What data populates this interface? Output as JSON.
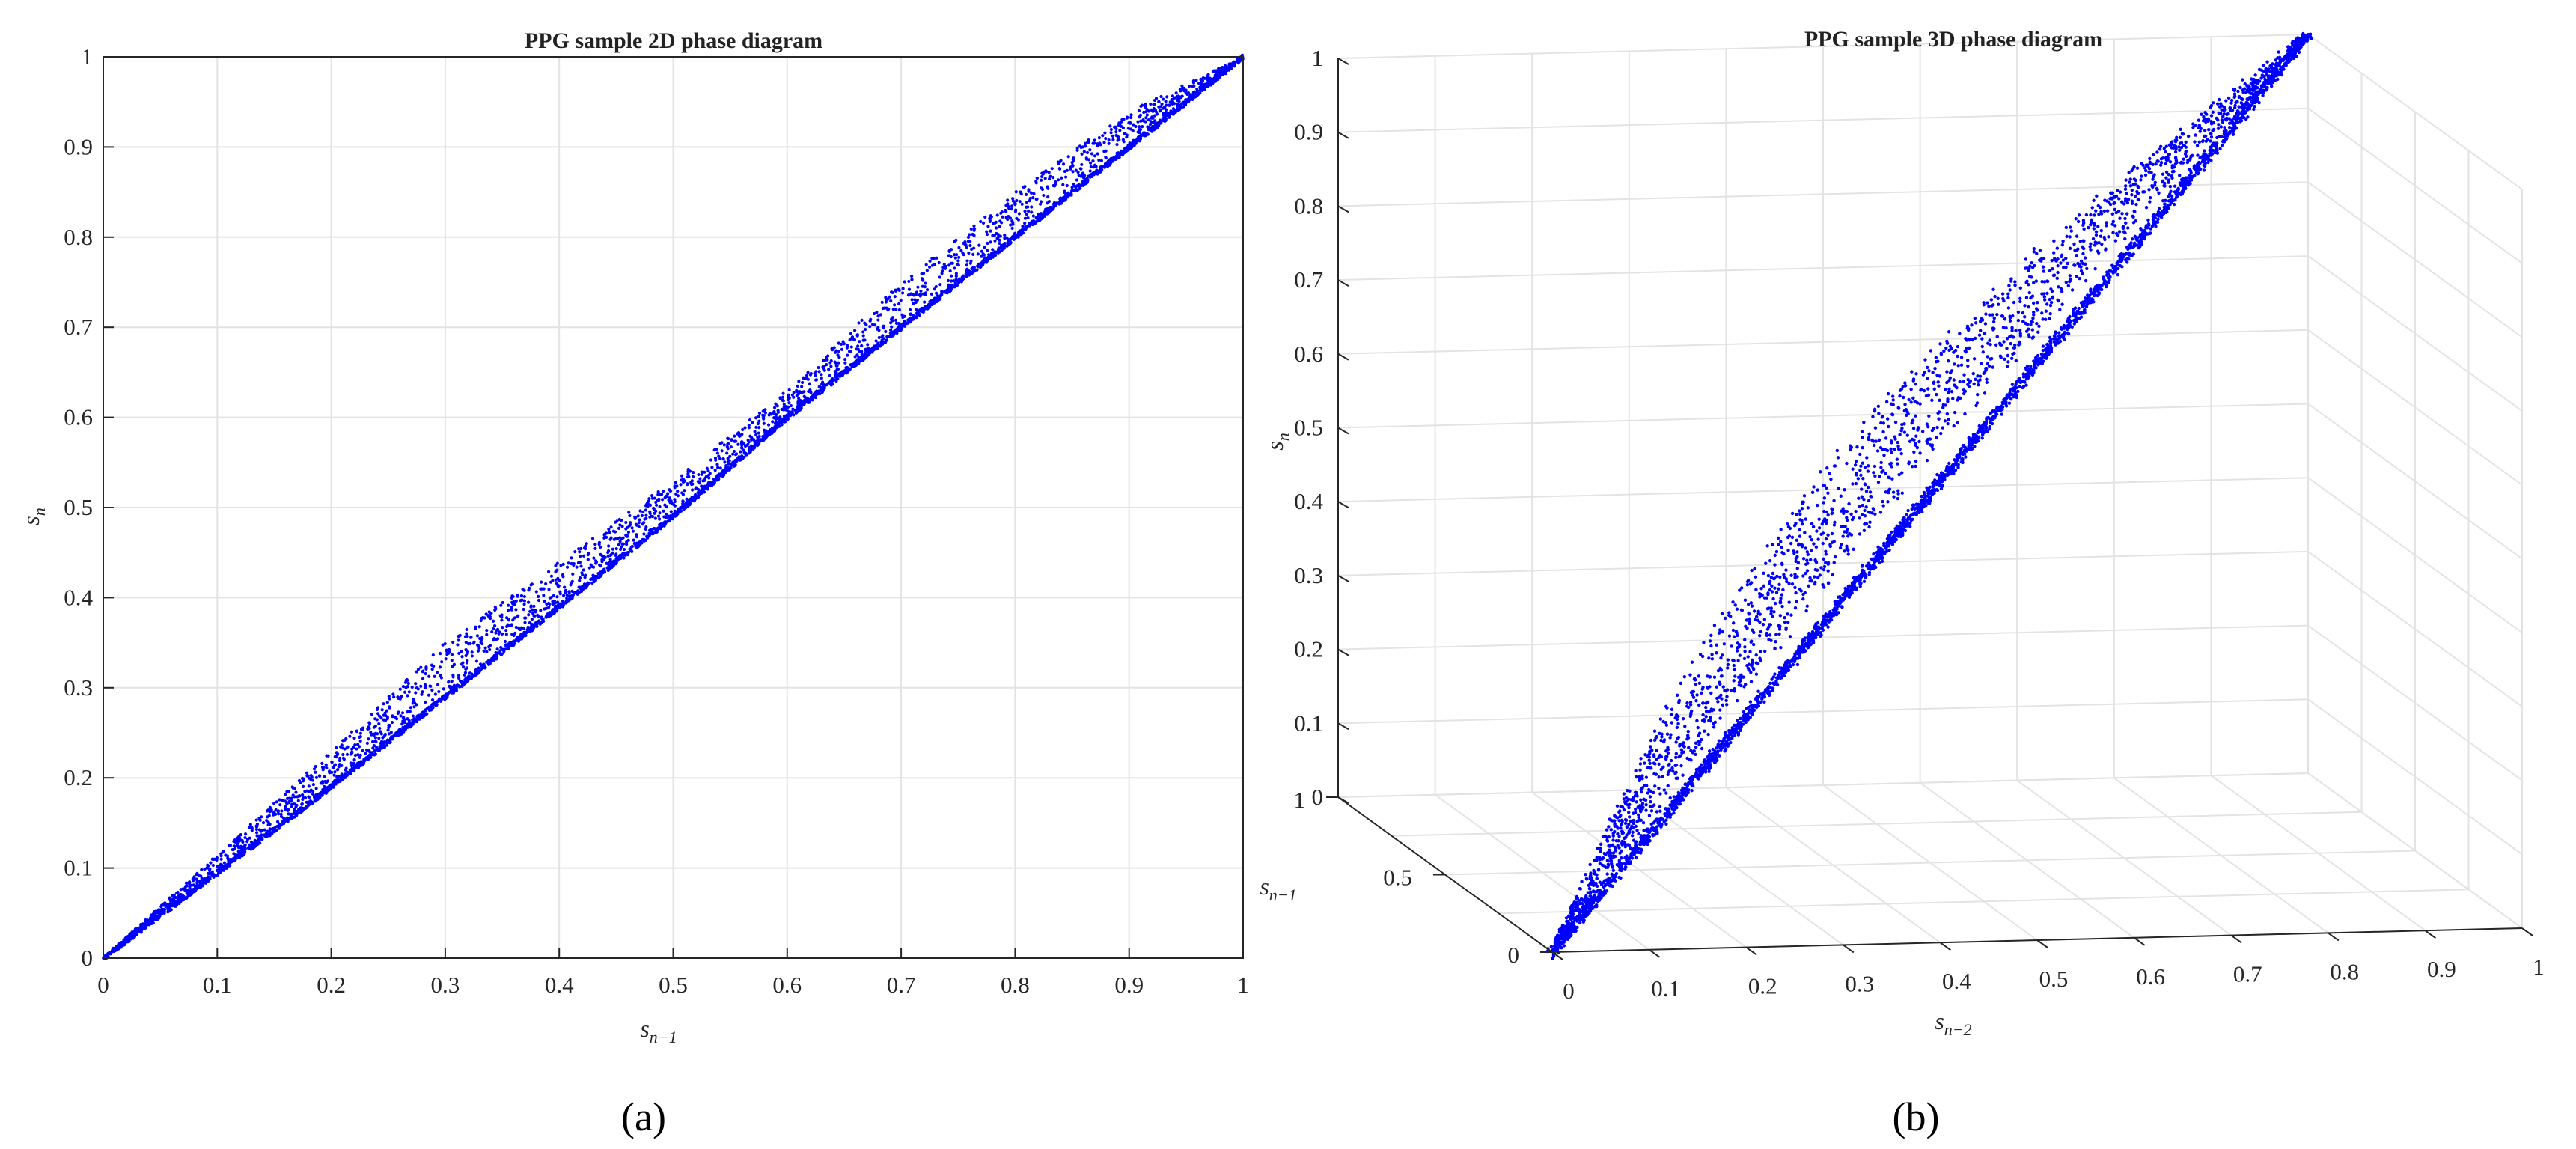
{
  "chart_data": [
    {
      "type": "scatter",
      "panel_label": "(a)",
      "title": "PPG sample 2D phase diagram",
      "xlabel": "s",
      "xlabel_sub": "n−1",
      "ylabel": "s",
      "ylabel_sub": "n",
      "xlim": [
        0,
        1
      ],
      "ylim": [
        0,
        1
      ],
      "xticks": [
        "0",
        "0.1",
        "0.2",
        "0.3",
        "0.4",
        "0.5",
        "0.6",
        "0.7",
        "0.8",
        "0.9",
        "1"
      ],
      "yticks": [
        "0",
        "0.1",
        "0.2",
        "0.3",
        "0.4",
        "0.5",
        "0.6",
        "0.7",
        "0.8",
        "0.9",
        "1"
      ],
      "grid": true,
      "marker_color": "#0000ff",
      "series": [
        {
          "x": [
            0.0,
            0.1,
            0.2,
            0.3,
            0.4,
            0.5,
            0.6,
            0.7,
            0.8,
            0.9,
            1.0
          ],
          "y": [
            0.0,
            0.095,
            0.19,
            0.29,
            0.39,
            0.49,
            0.6,
            0.7,
            0.8,
            0.9,
            1.0
          ]
        },
        {
          "x": [
            0.0,
            0.1,
            0.2,
            0.3,
            0.4,
            0.5,
            0.6,
            0.7,
            0.8,
            0.9,
            1.0
          ],
          "y": [
            0.0,
            0.115,
            0.23,
            0.35,
            0.44,
            0.53,
            0.63,
            0.75,
            0.85,
            0.94,
            1.0
          ]
        }
      ]
    },
    {
      "type": "scatter",
      "panel_label": "(b)",
      "title": "PPG sample 3D phase diagram",
      "xlabel": "s",
      "xlabel_sub": "n−2",
      "ylabel": "s",
      "ylabel_sub": "n−1",
      "zlabel": "s",
      "zlabel_sub": "n",
      "xlim": [
        0,
        1
      ],
      "ylim": [
        0,
        1
      ],
      "zlim": [
        0,
        1
      ],
      "xticks": [
        "0",
        "0.1",
        "0.2",
        "0.3",
        "0.4",
        "0.5",
        "0.6",
        "0.7",
        "0.8",
        "0.9",
        "1"
      ],
      "yticks": [
        "0",
        "0.5",
        "1"
      ],
      "zticks": [
        "0",
        "0.1",
        "0.2",
        "0.3",
        "0.4",
        "0.5",
        "0.6",
        "0.7",
        "0.8",
        "0.9",
        "1"
      ],
      "grid": true,
      "marker_color": "#0000ff",
      "series": [
        {
          "x": [
            0.0,
            0.2,
            0.4,
            0.6,
            0.8,
            1.0
          ],
          "y": [
            0.0,
            0.2,
            0.4,
            0.6,
            0.8,
            1.0
          ],
          "z": [
            0.0,
            0.2,
            0.4,
            0.6,
            0.8,
            1.0
          ]
        }
      ]
    }
  ]
}
